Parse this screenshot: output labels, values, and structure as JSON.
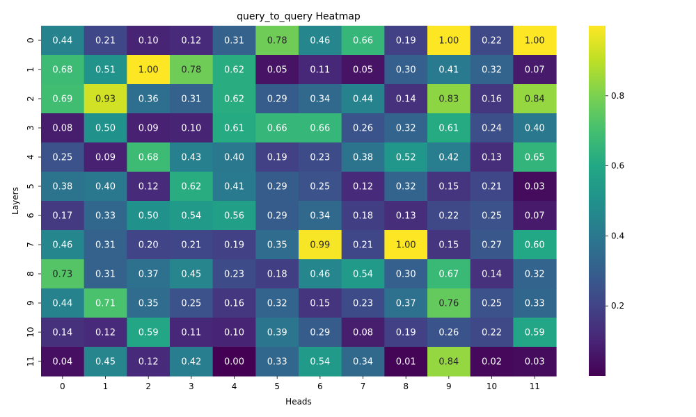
{
  "chart_data": {
    "type": "heatmap",
    "title": "query_to_query Heatmap",
    "xlabel": "Heads",
    "ylabel": "Layers",
    "x_categories": [
      "0",
      "1",
      "2",
      "3",
      "4",
      "5",
      "6",
      "7",
      "8",
      "9",
      "10",
      "11"
    ],
    "y_categories": [
      "0",
      "1",
      "2",
      "3",
      "4",
      "5",
      "6",
      "7",
      "8",
      "9",
      "10",
      "11"
    ],
    "values": [
      [
        0.44,
        0.21,
        0.1,
        0.12,
        0.31,
        0.78,
        0.46,
        0.66,
        0.19,
        1.0,
        0.22,
        1.0
      ],
      [
        0.68,
        0.51,
        1.0,
        0.78,
        0.62,
        0.05,
        0.11,
        0.05,
        0.3,
        0.41,
        0.32,
        0.07
      ],
      [
        0.69,
        0.93,
        0.36,
        0.31,
        0.62,
        0.29,
        0.34,
        0.44,
        0.14,
        0.83,
        0.16,
        0.84
      ],
      [
        0.08,
        0.5,
        0.09,
        0.1,
        0.61,
        0.66,
        0.66,
        0.26,
        0.32,
        0.61,
        0.24,
        0.4
      ],
      [
        0.25,
        0.09,
        0.68,
        0.43,
        0.4,
        0.19,
        0.23,
        0.38,
        0.52,
        0.42,
        0.13,
        0.65
      ],
      [
        0.38,
        0.4,
        0.12,
        0.62,
        0.41,
        0.29,
        0.25,
        0.12,
        0.32,
        0.15,
        0.21,
        0.03
      ],
      [
        0.17,
        0.33,
        0.5,
        0.54,
        0.56,
        0.29,
        0.34,
        0.18,
        0.13,
        0.22,
        0.25,
        0.07
      ],
      [
        0.46,
        0.31,
        0.2,
        0.21,
        0.19,
        0.35,
        0.99,
        0.21,
        1.0,
        0.15,
        0.27,
        0.6
      ],
      [
        0.73,
        0.31,
        0.37,
        0.45,
        0.23,
        0.18,
        0.46,
        0.54,
        0.3,
        0.67,
        0.14,
        0.32
      ],
      [
        0.44,
        0.71,
        0.35,
        0.25,
        0.16,
        0.32,
        0.15,
        0.23,
        0.37,
        0.76,
        0.25,
        0.33
      ],
      [
        0.14,
        0.12,
        0.59,
        0.11,
        0.1,
        0.39,
        0.29,
        0.08,
        0.19,
        0.26,
        0.22,
        0.59
      ],
      [
        0.04,
        0.45,
        0.12,
        0.42,
        0.0,
        0.33,
        0.54,
        0.34,
        0.01,
        0.84,
        0.02,
        0.03
      ]
    ],
    "value_range": [
      0.0,
      1.0
    ],
    "colormap": "viridis",
    "colorbar_ticks": [
      "0.2",
      "0.4",
      "0.6",
      "0.8"
    ],
    "colorbar_tick_values": [
      0.2,
      0.4,
      0.6,
      0.8
    ],
    "grid": false,
    "legend": "colorbar-right"
  }
}
